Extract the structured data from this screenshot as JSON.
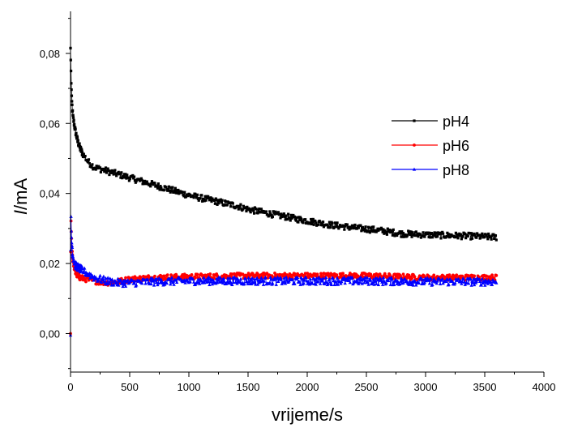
{
  "chart_data": {
    "type": "scatter",
    "title": "",
    "xlabel": "vrijeme/s",
    "ylabel_italic": "I",
    "ylabel_unit": "/mA",
    "xlim": [
      0,
      4000
    ],
    "ylim": [
      -0.011,
      0.092
    ],
    "x_ticks": [
      0,
      500,
      1000,
      1500,
      2000,
      2500,
      3000,
      3500,
      4000
    ],
    "y_ticks": [
      0.0,
      0.02,
      0.04,
      0.06,
      0.08
    ],
    "y_tick_labels": [
      "0,00",
      "0,02",
      "0,04",
      "0,06",
      "0,08"
    ],
    "legend_position": "upper-right",
    "grid": false,
    "series": [
      {
        "name": "pH4",
        "color": "#000000",
        "marker": "square",
        "noise": 0.0009,
        "x": [
          0,
          5,
          10,
          20,
          40,
          60,
          80,
          100,
          150,
          200,
          300,
          400,
          500,
          600,
          700,
          800,
          900,
          1000,
          1100,
          1200,
          1300,
          1400,
          1500,
          1600,
          1700,
          1800,
          1900,
          2000,
          2200,
          2400,
          2600,
          2800,
          3000,
          3200,
          3400,
          3600
        ],
        "y": [
          0.0815,
          0.073,
          0.067,
          0.062,
          0.058,
          0.055,
          0.053,
          0.0515,
          0.049,
          0.0475,
          0.0465,
          0.0455,
          0.0445,
          0.0435,
          0.0425,
          0.0415,
          0.0405,
          0.0395,
          0.0387,
          0.038,
          0.0372,
          0.0365,
          0.0355,
          0.0348,
          0.0341,
          0.0335,
          0.0328,
          0.0322,
          0.031,
          0.0302,
          0.0295,
          0.0285,
          0.0282,
          0.028,
          0.0278,
          0.0275
        ]
      },
      {
        "name": "pH6",
        "color": "#ff0000",
        "marker": "circle",
        "noise": 0.0008,
        "x": [
          0,
          3,
          5,
          10,
          20,
          40,
          60,
          80,
          100,
          200,
          300,
          400,
          500,
          700,
          1000,
          1500,
          2000,
          2500,
          3000,
          3500,
          3600
        ],
        "y": [
          0.0,
          0.035,
          0.03,
          0.025,
          0.021,
          0.0175,
          0.0165,
          0.016,
          0.0158,
          0.015,
          0.0145,
          0.0148,
          0.0155,
          0.016,
          0.0162,
          0.0165,
          0.0165,
          0.0165,
          0.016,
          0.016,
          0.016
        ]
      },
      {
        "name": "pH8",
        "color": "#0000ff",
        "marker": "triangle",
        "noise": 0.0011,
        "x": [
          0,
          3,
          5,
          10,
          20,
          40,
          60,
          80,
          100,
          150,
          200,
          300,
          400,
          500,
          700,
          1000,
          1500,
          2000,
          2500,
          3000,
          3500,
          3600
        ],
        "y": [
          -0.0005,
          0.036,
          0.03,
          0.026,
          0.022,
          0.0195,
          0.019,
          0.0185,
          0.018,
          0.017,
          0.016,
          0.015,
          0.0145,
          0.0145,
          0.0148,
          0.015,
          0.015,
          0.015,
          0.015,
          0.0148,
          0.0148,
          0.0148
        ]
      }
    ]
  }
}
